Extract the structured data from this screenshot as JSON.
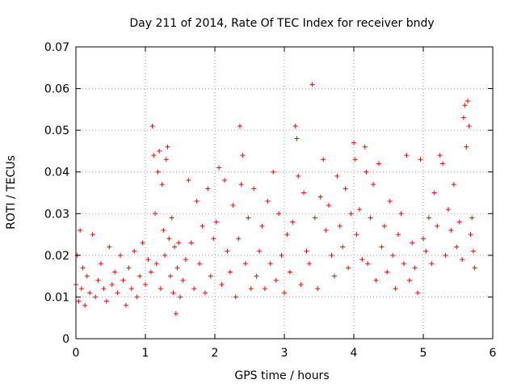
{
  "chart_data": {
    "type": "scatter",
    "title": "Day 211 of 2014, Rate Of TEC Index for receiver bndy",
    "xlabel": "GPS time / hours",
    "ylabel": "ROTI / TECUs",
    "xlim": [
      0,
      6
    ],
    "ylim": [
      0,
      0.07
    ],
    "xticks": [
      "0",
      "1",
      "2",
      "3",
      "4",
      "5",
      "6"
    ],
    "yticks": [
      "0",
      "0.01",
      "0.02",
      "0.03",
      "0.04",
      "0.05",
      "0.06",
      "0.07"
    ],
    "grid": true,
    "marker": "+",
    "color": "#ff0000",
    "series": [
      {
        "name": "ROTI",
        "x": [
          0.0,
          0.02,
          0.04,
          0.06,
          0.08,
          0.1,
          0.13,
          0.16,
          0.2,
          0.24,
          0.28,
          0.32,
          0.36,
          0.4,
          0.44,
          0.48,
          0.52,
          0.56,
          0.6,
          0.64,
          0.68,
          0.72,
          0.76,
          0.8,
          0.84,
          0.88,
          0.92,
          0.96,
          1.0,
          1.04,
          1.08,
          1.1,
          1.12,
          1.14,
          1.16,
          1.18,
          1.2,
          1.22,
          1.24,
          1.26,
          1.28,
          1.3,
          1.32,
          1.34,
          1.36,
          1.38,
          1.4,
          1.42,
          1.44,
          1.46,
          1.48,
          1.5,
          1.54,
          1.58,
          1.62,
          1.66,
          1.7,
          1.74,
          1.78,
          1.82,
          1.86,
          1.9,
          1.94,
          1.98,
          2.02,
          2.06,
          2.1,
          2.14,
          2.18,
          2.22,
          2.26,
          2.3,
          2.34,
          2.36,
          2.38,
          2.4,
          2.44,
          2.48,
          2.52,
          2.56,
          2.6,
          2.64,
          2.68,
          2.72,
          2.76,
          2.8,
          2.84,
          2.88,
          2.92,
          2.96,
          3.0,
          3.04,
          3.08,
          3.12,
          3.16,
          3.18,
          3.2,
          3.24,
          3.28,
          3.32,
          3.36,
          3.4,
          3.44,
          3.48,
          3.52,
          3.56,
          3.6,
          3.64,
          3.68,
          3.72,
          3.76,
          3.8,
          3.84,
          3.88,
          3.92,
          3.96,
          4.0,
          4.02,
          4.04,
          4.08,
          4.12,
          4.16,
          4.18,
          4.2,
          4.24,
          4.28,
          4.32,
          4.36,
          4.4,
          4.44,
          4.48,
          4.52,
          4.56,
          4.6,
          4.64,
          4.68,
          4.72,
          4.76,
          4.8,
          4.84,
          4.88,
          4.92,
          4.96,
          5.0,
          5.04,
          5.08,
          5.12,
          5.16,
          5.2,
          5.24,
          5.28,
          5.32,
          5.36,
          5.4,
          5.44,
          5.48,
          5.52,
          5.56,
          5.58,
          5.6,
          5.62,
          5.64,
          5.66,
          5.68,
          5.7,
          5.72,
          5.74
        ],
        "y": [
          0.013,
          0.02,
          0.009,
          0.026,
          0.012,
          0.017,
          0.008,
          0.015,
          0.011,
          0.025,
          0.01,
          0.014,
          0.018,
          0.012,
          0.009,
          0.022,
          0.013,
          0.016,
          0.011,
          0.02,
          0.014,
          0.008,
          0.017,
          0.012,
          0.021,
          0.01,
          0.015,
          0.023,
          0.013,
          0.019,
          0.016,
          0.051,
          0.044,
          0.03,
          0.018,
          0.04,
          0.045,
          0.012,
          0.037,
          0.026,
          0.02,
          0.043,
          0.046,
          0.024,
          0.015,
          0.029,
          0.011,
          0.022,
          0.006,
          0.017,
          0.023,
          0.01,
          0.014,
          0.019,
          0.038,
          0.023,
          0.012,
          0.033,
          0.018,
          0.027,
          0.011,
          0.036,
          0.015,
          0.024,
          0.028,
          0.041,
          0.013,
          0.038,
          0.021,
          0.016,
          0.032,
          0.01,
          0.024,
          0.051,
          0.037,
          0.044,
          0.018,
          0.029,
          0.012,
          0.036,
          0.015,
          0.021,
          0.027,
          0.012,
          0.033,
          0.018,
          0.04,
          0.014,
          0.03,
          0.02,
          0.011,
          0.025,
          0.016,
          0.028,
          0.051,
          0.048,
          0.039,
          0.013,
          0.035,
          0.021,
          0.018,
          0.061,
          0.029,
          0.012,
          0.034,
          0.043,
          0.026,
          0.032,
          0.02,
          0.015,
          0.039,
          0.027,
          0.022,
          0.036,
          0.017,
          0.03,
          0.047,
          0.043,
          0.025,
          0.031,
          0.019,
          0.046,
          0.04,
          0.018,
          0.029,
          0.037,
          0.014,
          0.042,
          0.022,
          0.027,
          0.016,
          0.033,
          0.02,
          0.012,
          0.025,
          0.03,
          0.018,
          0.044,
          0.014,
          0.023,
          0.017,
          0.011,
          0.043,
          0.024,
          0.021,
          0.029,
          0.018,
          0.035,
          0.027,
          0.044,
          0.042,
          0.02,
          0.031,
          0.026,
          0.037,
          0.022,
          0.028,
          0.019,
          0.053,
          0.056,
          0.046,
          0.057,
          0.051,
          0.025,
          0.029,
          0.021,
          0.017
        ]
      }
    ]
  }
}
